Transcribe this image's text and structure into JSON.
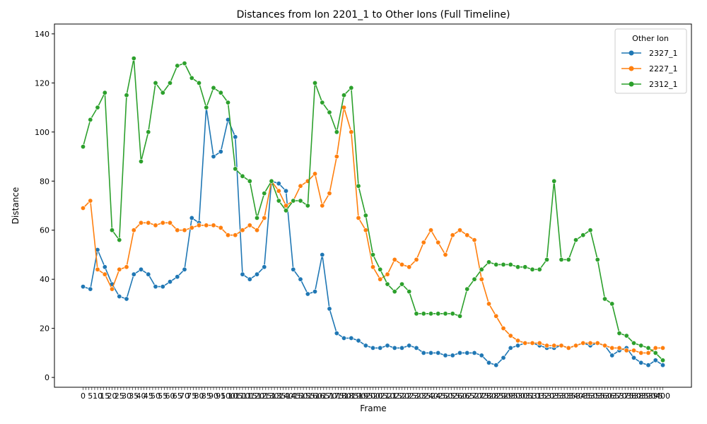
{
  "chart_data": {
    "type": "line",
    "title": "Distances from Ion 2201_1 to Other Ions (Full Timeline)",
    "xlabel": "Frame",
    "ylabel": "Distance",
    "xlim": [
      0,
      400
    ],
    "ylim": [
      -4,
      144
    ],
    "yticks": [
      0,
      20,
      40,
      60,
      80,
      100,
      120,
      140
    ],
    "grid": false,
    "legend": {
      "title": "Other Ion",
      "position": "top-right"
    },
    "markers": true,
    "x_tick_labels_note": "dense overlapping labels at every frame",
    "series": [
      {
        "name": "2327_1",
        "color": "#1f77b4",
        "points": [
          [
            0,
            37
          ],
          [
            5,
            36
          ],
          [
            10,
            52
          ],
          [
            15,
            45
          ],
          [
            20,
            38
          ],
          [
            25,
            33
          ],
          [
            30,
            32
          ],
          [
            35,
            42
          ],
          [
            40,
            44
          ],
          [
            45,
            42
          ],
          [
            50,
            37
          ],
          [
            55,
            37
          ],
          [
            60,
            39
          ],
          [
            65,
            41
          ],
          [
            70,
            44
          ],
          [
            75,
            65
          ],
          [
            80,
            63
          ],
          [
            85,
            110
          ],
          [
            90,
            90
          ],
          [
            95,
            92
          ],
          [
            100,
            105
          ],
          [
            105,
            98
          ],
          [
            110,
            42
          ],
          [
            115,
            40
          ],
          [
            120,
            42
          ],
          [
            125,
            45
          ],
          [
            130,
            80
          ],
          [
            135,
            79
          ],
          [
            140,
            76
          ],
          [
            145,
            44
          ],
          [
            150,
            40
          ],
          [
            155,
            34
          ],
          [
            160,
            35
          ],
          [
            165,
            50
          ],
          [
            170,
            28
          ],
          [
            175,
            18
          ],
          [
            180,
            16
          ],
          [
            185,
            16
          ],
          [
            190,
            15
          ],
          [
            195,
            13
          ],
          [
            200,
            12
          ],
          [
            205,
            12
          ],
          [
            210,
            13
          ],
          [
            215,
            12
          ],
          [
            220,
            12
          ],
          [
            225,
            13
          ],
          [
            230,
            12
          ],
          [
            235,
            10
          ],
          [
            240,
            10
          ],
          [
            245,
            10
          ],
          [
            250,
            9
          ],
          [
            255,
            9
          ],
          [
            260,
            10
          ],
          [
            265,
            10
          ],
          [
            270,
            10
          ],
          [
            275,
            9
          ],
          [
            280,
            6
          ],
          [
            285,
            5
          ],
          [
            290,
            8
          ],
          [
            295,
            12
          ],
          [
            300,
            13
          ],
          [
            305,
            14
          ],
          [
            310,
            14
          ],
          [
            315,
            13
          ],
          [
            320,
            12
          ],
          [
            325,
            12
          ],
          [
            330,
            13
          ],
          [
            335,
            12
          ],
          [
            340,
            13
          ],
          [
            345,
            14
          ],
          [
            350,
            13
          ],
          [
            355,
            14
          ],
          [
            360,
            13
          ],
          [
            365,
            9
          ],
          [
            370,
            11
          ],
          [
            375,
            12
          ],
          [
            380,
            8
          ],
          [
            385,
            6
          ],
          [
            390,
            5
          ],
          [
            395,
            7
          ],
          [
            400,
            5
          ]
        ]
      },
      {
        "name": "2227_1",
        "color": "#ff7f0e",
        "points": [
          [
            0,
            69
          ],
          [
            5,
            72
          ],
          [
            10,
            44
          ],
          [
            15,
            42
          ],
          [
            20,
            36
          ],
          [
            25,
            44
          ],
          [
            30,
            45
          ],
          [
            35,
            60
          ],
          [
            40,
            63
          ],
          [
            45,
            63
          ],
          [
            50,
            62
          ],
          [
            55,
            63
          ],
          [
            60,
            63
          ],
          [
            65,
            60
          ],
          [
            70,
            60
          ],
          [
            75,
            61
          ],
          [
            80,
            62
          ],
          [
            85,
            62
          ],
          [
            90,
            62
          ],
          [
            95,
            61
          ],
          [
            100,
            58
          ],
          [
            105,
            58
          ],
          [
            110,
            60
          ],
          [
            115,
            62
          ],
          [
            120,
            60
          ],
          [
            125,
            65
          ],
          [
            130,
            80
          ],
          [
            135,
            76
          ],
          [
            140,
            70
          ],
          [
            145,
            72
          ],
          [
            150,
            78
          ],
          [
            155,
            80
          ],
          [
            160,
            83
          ],
          [
            165,
            70
          ],
          [
            170,
            75
          ],
          [
            175,
            90
          ],
          [
            180,
            110
          ],
          [
            185,
            100
          ],
          [
            190,
            65
          ],
          [
            195,
            60
          ],
          [
            200,
            45
          ],
          [
            205,
            40
          ],
          [
            210,
            42
          ],
          [
            215,
            48
          ],
          [
            220,
            46
          ],
          [
            225,
            45
          ],
          [
            230,
            48
          ],
          [
            235,
            55
          ],
          [
            240,
            60
          ],
          [
            245,
            55
          ],
          [
            250,
            50
          ],
          [
            255,
            58
          ],
          [
            260,
            60
          ],
          [
            265,
            58
          ],
          [
            270,
            56
          ],
          [
            275,
            40
          ],
          [
            280,
            30
          ],
          [
            285,
            25
          ],
          [
            290,
            20
          ],
          [
            295,
            17
          ],
          [
            300,
            15
          ],
          [
            305,
            14
          ],
          [
            310,
            14
          ],
          [
            315,
            14
          ],
          [
            320,
            13
          ],
          [
            325,
            13
          ],
          [
            330,
            13
          ],
          [
            335,
            12
          ],
          [
            340,
            13
          ],
          [
            345,
            14
          ],
          [
            350,
            14
          ],
          [
            355,
            14
          ],
          [
            360,
            13
          ],
          [
            365,
            12
          ],
          [
            370,
            12
          ],
          [
            375,
            11
          ],
          [
            380,
            11
          ],
          [
            385,
            10
          ],
          [
            390,
            10
          ],
          [
            395,
            12
          ],
          [
            400,
            12
          ]
        ]
      },
      {
        "name": "2312_1",
        "color": "#2ca02c",
        "points": [
          [
            0,
            94
          ],
          [
            5,
            105
          ],
          [
            10,
            110
          ],
          [
            15,
            116
          ],
          [
            20,
            60
          ],
          [
            25,
            56
          ],
          [
            30,
            115
          ],
          [
            35,
            130
          ],
          [
            40,
            88
          ],
          [
            45,
            100
          ],
          [
            50,
            120
          ],
          [
            55,
            116
          ],
          [
            60,
            120
          ],
          [
            65,
            127
          ],
          [
            70,
            128
          ],
          [
            75,
            122
          ],
          [
            80,
            120
          ],
          [
            85,
            110
          ],
          [
            90,
            118
          ],
          [
            95,
            116
          ],
          [
            100,
            112
          ],
          [
            105,
            85
          ],
          [
            110,
            82
          ],
          [
            115,
            80
          ],
          [
            120,
            65
          ],
          [
            125,
            75
          ],
          [
            130,
            80
          ],
          [
            135,
            72
          ],
          [
            140,
            68
          ],
          [
            145,
            72
          ],
          [
            150,
            72
          ],
          [
            155,
            70
          ],
          [
            160,
            120
          ],
          [
            165,
            112
          ],
          [
            170,
            108
          ],
          [
            175,
            100
          ],
          [
            180,
            115
          ],
          [
            185,
            118
          ],
          [
            190,
            78
          ],
          [
            195,
            66
          ],
          [
            200,
            50
          ],
          [
            205,
            44
          ],
          [
            210,
            38
          ],
          [
            215,
            35
          ],
          [
            220,
            38
          ],
          [
            225,
            35
          ],
          [
            230,
            26
          ],
          [
            235,
            26
          ],
          [
            240,
            26
          ],
          [
            245,
            26
          ],
          [
            250,
            26
          ],
          [
            255,
            26
          ],
          [
            260,
            25
          ],
          [
            265,
            36
          ],
          [
            270,
            40
          ],
          [
            275,
            44
          ],
          [
            280,
            47
          ],
          [
            285,
            46
          ],
          [
            290,
            46
          ],
          [
            295,
            46
          ],
          [
            300,
            45
          ],
          [
            305,
            45
          ],
          [
            310,
            44
          ],
          [
            315,
            44
          ],
          [
            320,
            48
          ],
          [
            325,
            80
          ],
          [
            330,
            48
          ],
          [
            335,
            48
          ],
          [
            340,
            56
          ],
          [
            345,
            58
          ],
          [
            350,
            60
          ],
          [
            355,
            48
          ],
          [
            360,
            32
          ],
          [
            365,
            30
          ],
          [
            370,
            18
          ],
          [
            375,
            17
          ],
          [
            380,
            14
          ],
          [
            385,
            13
          ],
          [
            390,
            12
          ],
          [
            395,
            10
          ],
          [
            400,
            7
          ]
        ]
      }
    ]
  }
}
